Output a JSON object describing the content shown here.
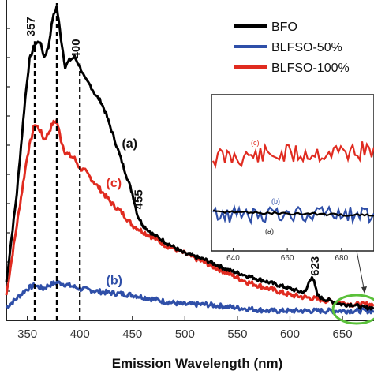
{
  "chart_data": {
    "type": "line",
    "xlabel": "Emission Wavelength (nm)",
    "ylabel": "",
    "xlim": [
      330,
      680
    ],
    "ylim": [
      0,
      100
    ],
    "xticks": [
      350,
      400,
      450,
      500,
      550,
      600,
      650
    ],
    "grid": false,
    "legend": {
      "position": "top-right",
      "entries": [
        "BFO",
        "BLFSO-50%",
        "BLFSO-100%"
      ]
    },
    "colors": {
      "BFO": "#000000",
      "BLFSO-50%": "#2f4fa8",
      "BLFSO-100%": "#e02b20"
    },
    "series": [
      {
        "name": "BFO",
        "label": "(a)",
        "x": [
          330,
          340,
          348,
          352,
          357,
          362,
          366,
          370,
          374,
          378,
          382,
          386,
          390,
          395,
          400,
          405,
          410,
          415,
          420,
          425,
          430,
          440,
          450,
          455,
          460,
          470,
          480,
          490,
          500,
          520,
          540,
          560,
          580,
          600,
          610,
          615,
          618,
          621,
          623,
          626,
          630,
          640,
          650,
          660,
          670,
          680
        ],
        "y": [
          12,
          40,
          70,
          82,
          87,
          88,
          83,
          86,
          95,
          99,
          89,
          80,
          82,
          83,
          80,
          76,
          74,
          71,
          69,
          65,
          60,
          50,
          40,
          33,
          30,
          27,
          25,
          23,
          21,
          19,
          16,
          14,
          12,
          10,
          9,
          9,
          12,
          14,
          12,
          8,
          7,
          6,
          5,
          5,
          4,
          4
        ]
      },
      {
        "name": "BLFSO-50%",
        "label": "(b)",
        "x": [
          330,
          340,
          350,
          357,
          365,
          370,
          378,
          390,
          400,
          420,
          450,
          480,
          500,
          520,
          550,
          580,
          600,
          620,
          640,
          660,
          680
        ],
        "y": [
          4,
          7,
          10,
          11,
          10,
          11,
          12,
          11,
          10,
          9,
          8,
          6,
          5,
          5,
          4,
          3,
          3,
          3,
          3,
          3,
          3
        ]
      },
      {
        "name": "BLFSO-100%",
        "label": "(c)",
        "x": [
          330,
          340,
          350,
          357,
          362,
          366,
          370,
          374,
          378,
          382,
          386,
          390,
          395,
          400,
          405,
          410,
          420,
          430,
          440,
          450,
          460,
          480,
          500,
          520,
          540,
          560,
          580,
          600,
          620,
          640,
          660,
          680
        ],
        "y": [
          8,
          30,
          52,
          62,
          60,
          57,
          59,
          62,
          63,
          57,
          53,
          52,
          51,
          48,
          47,
          45,
          41,
          37,
          34,
          30,
          28,
          24,
          21,
          18,
          15,
          12,
          10,
          8,
          7,
          6,
          5,
          5
        ]
      }
    ],
    "annotations": {
      "peaks": [
        "357",
        "378",
        "400",
        "455",
        "623"
      ],
      "peak_positions": [
        357,
        378,
        400,
        455,
        623
      ]
    },
    "inset": {
      "xticks": [
        640,
        660,
        680
      ],
      "xlim": [
        632,
        692
      ],
      "labels": [
        "(c)",
        "(b)",
        "(a)"
      ]
    }
  }
}
